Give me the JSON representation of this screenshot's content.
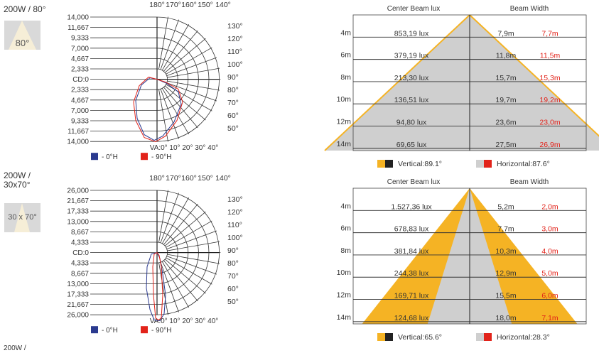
{
  "sections": [
    {
      "title": "200W / 80°",
      "badge_label": "80°",
      "polar": {
        "cd_labels": [
          "14,000",
          "11,667",
          "9,333",
          "7,000",
          "4,667",
          "2,333",
          "CD:0",
          "2,333",
          "4,667",
          "7,000",
          "9,333",
          "11,667",
          "14,000"
        ],
        "top_labels": [
          "180°",
          "170°",
          "160°",
          "150°",
          "140°"
        ],
        "right_labels": [
          "130°",
          "120°",
          "110°",
          "100°",
          "90°",
          "80°",
          "70°",
          "60°",
          "50°"
        ],
        "va_label": "VA:0° 10° 20° 30° 40°",
        "legend": [
          {
            "label": "- 0°H",
            "color": "#2b3a8f"
          },
          {
            "label": "- 90°H",
            "color": "#e2231a"
          }
        ]
      },
      "chart_data": {
        "type": "table",
        "headers": [
          "Center Beam lux",
          "Beam Width"
        ],
        "rows": [
          {
            "distance": "4m",
            "lux": "853,19 lux",
            "width_v": "7,9m",
            "width_h": "7,7m"
          },
          {
            "distance": "6m",
            "lux": "379,19 lux",
            "width_v": "11,8m",
            "width_h": "11,5m"
          },
          {
            "distance": "8m",
            "lux": "213,30 lux",
            "width_v": "15,7m",
            "width_h": "15,3m"
          },
          {
            "distance": "10m",
            "lux": "136,51 lux",
            "width_v": "19,7m",
            "width_h": "19,2m"
          },
          {
            "distance": "12m",
            "lux": "94,80 lux",
            "width_v": "23,6m",
            "width_h": "23,0m"
          },
          {
            "distance": "14m",
            "lux": "69,65 lux",
            "width_v": "27,5m",
            "width_h": "26,9m"
          }
        ],
        "vertical_angle": 89.1,
        "horizontal_angle": 87.6,
        "legend_vertical": "Vertical:89.1°",
        "legend_horizontal": "Horizontal:87.6°",
        "colors": {
          "vertical": "#f5b324",
          "horizontal": "#cfcfcf",
          "dark": "#222222",
          "red": "#e2231a"
        }
      }
    },
    {
      "title": "200W / 30x70°",
      "badge_label": "30 x 70°",
      "polar": {
        "cd_labels": [
          "26,000",
          "21,667",
          "17,333",
          "13,000",
          "8,667",
          "4,333",
          "CD:0",
          "4,333",
          "8,667",
          "13,000",
          "17,333",
          "21,667",
          "26,000"
        ],
        "top_labels": [
          "180°",
          "170°",
          "160°",
          "150°",
          "140°"
        ],
        "right_labels": [
          "130°",
          "120°",
          "110°",
          "100°",
          "90°",
          "80°",
          "70°",
          "60°",
          "50°"
        ],
        "va_label": "VA:0° 10° 20° 30° 40°",
        "legend": [
          {
            "label": "- 0°H",
            "color": "#2b3a8f"
          },
          {
            "label": "- 90°H",
            "color": "#e2231a"
          }
        ]
      },
      "chart_data": {
        "type": "table",
        "headers": [
          "Center Beam lux",
          "Beam Width"
        ],
        "rows": [
          {
            "distance": "4m",
            "lux": "1.527,36 lux",
            "width_v": "5,2m",
            "width_h": "2,0m"
          },
          {
            "distance": "6m",
            "lux": "678,83 lux",
            "width_v": "7,7m",
            "width_h": "3,0m"
          },
          {
            "distance": "8m",
            "lux": "381,84 lux",
            "width_v": "10,3m",
            "width_h": "4,0m"
          },
          {
            "distance": "10m",
            "lux": "244,38 lux",
            "width_v": "12,9m",
            "width_h": "5,0m"
          },
          {
            "distance": "12m",
            "lux": "169,71 lux",
            "width_v": "15,5m",
            "width_h": "6,0m"
          },
          {
            "distance": "14m",
            "lux": "124,68 lux",
            "width_v": "18,0m",
            "width_h": "7,1m"
          }
        ],
        "vertical_angle": 65.6,
        "horizontal_angle": 28.3,
        "legend_vertical": "Vertical:65.6°",
        "legend_horizontal": "Horizontal:28.3°",
        "colors": {
          "vertical": "#f5b324",
          "horizontal": "#cfcfcf",
          "dark": "#222222",
          "red": "#e2231a"
        }
      }
    }
  ],
  "footer_fragment": "200W /"
}
